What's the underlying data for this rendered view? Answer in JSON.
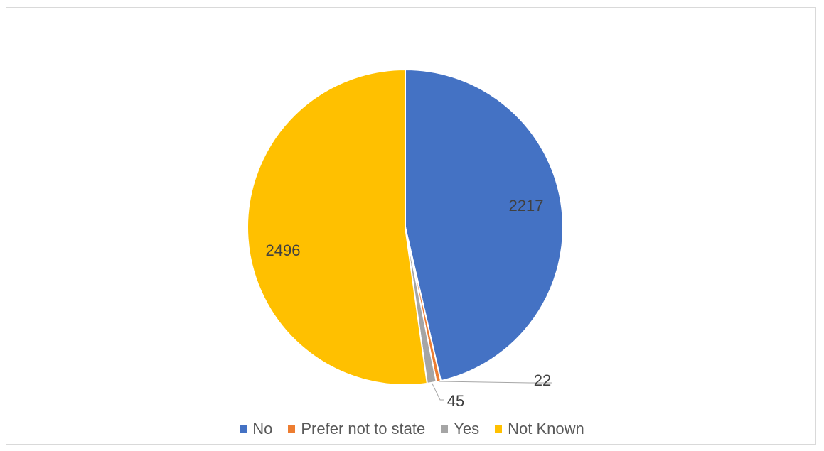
{
  "chart_data": {
    "type": "pie",
    "title": "",
    "slices": [
      {
        "label": "No",
        "value": 2217,
        "color": "#4472C4"
      },
      {
        "label": "Prefer not to state",
        "value": 22,
        "color": "#ED7D31"
      },
      {
        "label": "Yes",
        "value": 45,
        "color": "#A5A5A5"
      },
      {
        "label": "Not Known",
        "value": 2496,
        "color": "#FFC000"
      }
    ],
    "data_labels": [
      "2217",
      "22",
      "45",
      "2496"
    ],
    "legend": {
      "position": "bottom",
      "entries": [
        "No",
        "Prefer not to state",
        "Yes",
        "Not Known"
      ]
    }
  }
}
